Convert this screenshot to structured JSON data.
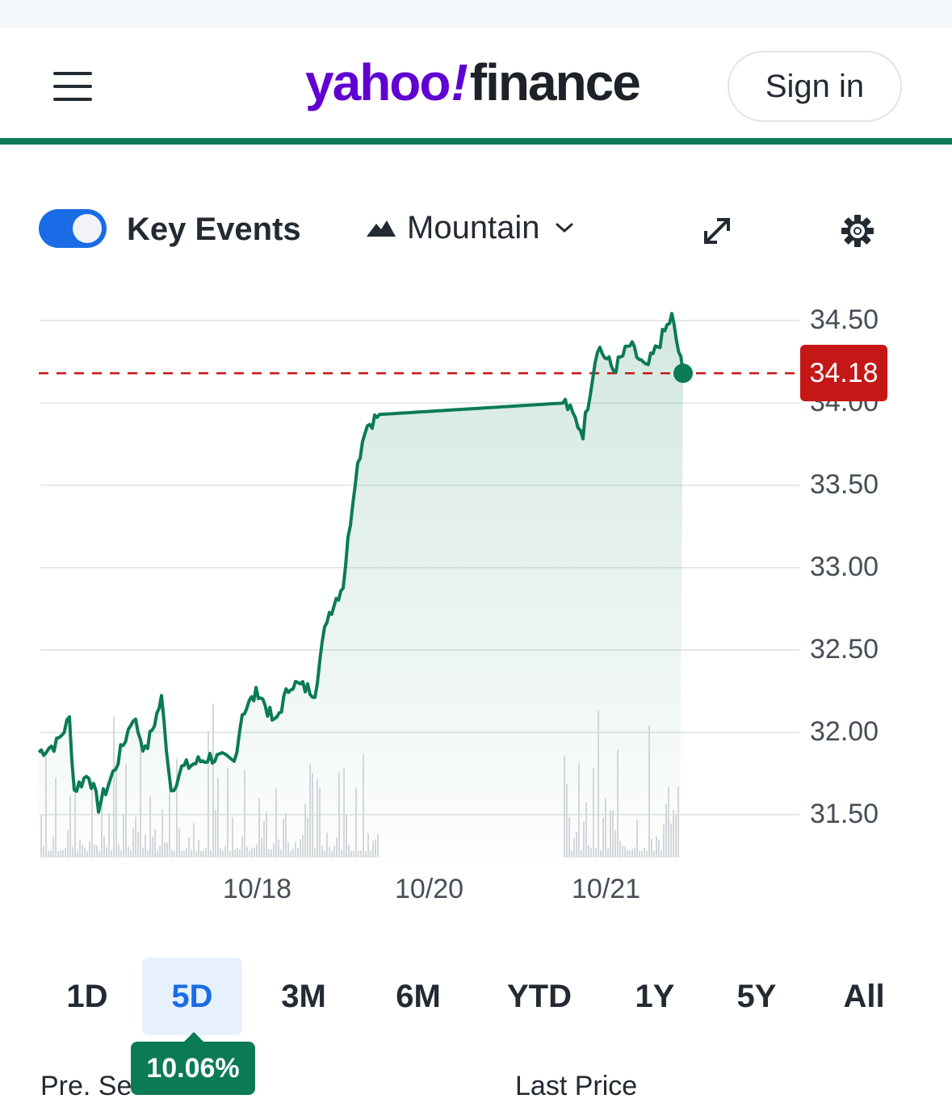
{
  "header": {
    "logo_yahoo": "yahoo",
    "logo_bang": "!",
    "logo_finance": "finance",
    "sign_in": "Sign in"
  },
  "toolbar": {
    "key_events_label": "Key Events",
    "key_events_on": true,
    "chart_type_label": "Mountain"
  },
  "chart_data": {
    "type": "area",
    "x_ticks": [
      "10/18",
      "10/20",
      "10/21"
    ],
    "y_ticks": [
      "34.50",
      "34.00",
      "33.50",
      "33.00",
      "32.50",
      "32.00",
      "31.50"
    ],
    "ylim": [
      31.3,
      34.7
    ],
    "last_price": "34.18",
    "last_price_value": 34.18,
    "series_color": "#0b7a57",
    "reference_line_color": "#c61717"
  },
  "ranges": {
    "items": [
      "1D",
      "5D",
      "3M",
      "6M",
      "YTD",
      "1Y",
      "5Y",
      "All"
    ],
    "active": "5D"
  },
  "change_pill": "10.06%",
  "footer": {
    "pre_session": "Pre. Se",
    "last_price": "Last Price"
  }
}
